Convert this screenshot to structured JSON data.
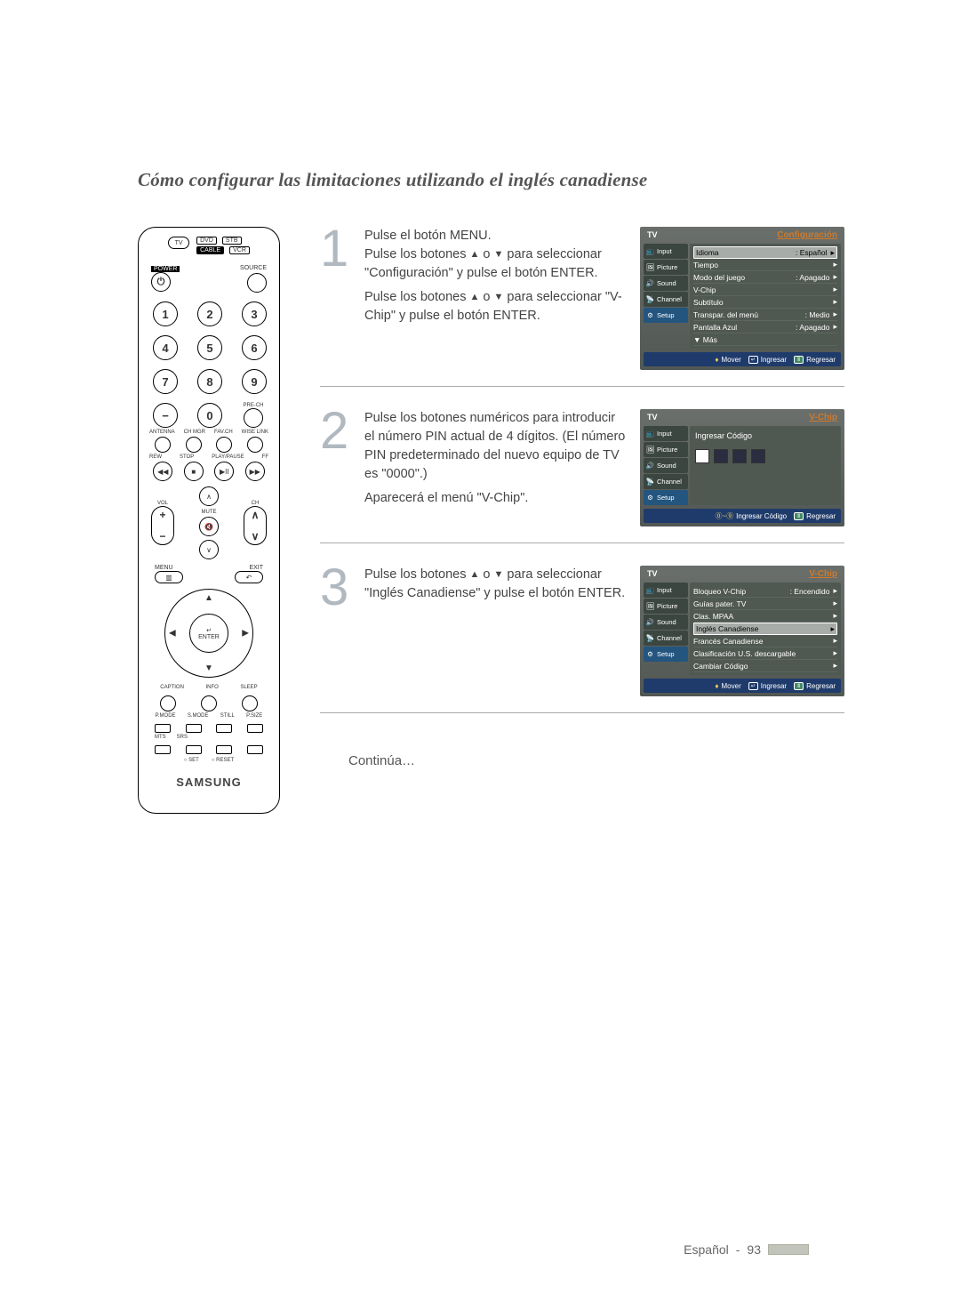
{
  "title": "Cómo configurar las limitaciones utilizando el inglés canadiense",
  "remote": {
    "tv": "TV",
    "dvd": "DVD",
    "stb": "STB",
    "cable": "CABLE",
    "vcr": "VCR",
    "power": "POWER",
    "source": "SOURCE",
    "nums": [
      "1",
      "2",
      "3",
      "4",
      "5",
      "6",
      "7",
      "8",
      "9"
    ],
    "zero": "0",
    "prech": "PRE-CH",
    "row_lbls": [
      "ANTENNA",
      "CH MGR",
      "FAV.CH",
      "WISE LINK"
    ],
    "trans_lbls": [
      "REW",
      "STOP",
      "PLAY/PAUSE",
      "FF"
    ],
    "vol": "VOL",
    "ch": "CH",
    "mute": "MUTE",
    "menu": "MENU",
    "exit": "EXIT",
    "enter": "ENTER",
    "row3": [
      "CAPTION",
      "INFO",
      "SLEEP"
    ],
    "row4": [
      "P.MODE",
      "S.MODE",
      "STILL",
      "P.SIZE"
    ],
    "row5": [
      "MTS",
      "SRS"
    ],
    "setreset": [
      "SET",
      "RESET"
    ],
    "brand": "SAMSUNG"
  },
  "steps": [
    {
      "num": "1",
      "para1_a": "Pulse el botón MENU.",
      "para1_b_pre": "Pulse los botones ",
      "para1_b_post": " para seleccionar \"Configuración\" y pulse el botón ENTER.",
      "para2_pre": "Pulse los botones ",
      "para2_post": " para seleccionar \"V-Chip\" y pulse el botón ENTER."
    },
    {
      "num": "2",
      "para1": "Pulse los botones numéricos para introducir el número PIN actual de 4 dígitos. (El número PIN predeterminado del nuevo equipo de TV es \"0000\".)",
      "para2": "Aparecerá el menú \"V-Chip\"."
    },
    {
      "num": "3",
      "para1_pre": "Pulse los botones ",
      "para1_post": " para seleccionar \"Inglés Canadiense\" y pulse el botón ENTER."
    }
  ],
  "continue": "Continúa…",
  "osd1": {
    "left": "TV",
    "right": "Configuración",
    "tabs": [
      "Input",
      "Picture",
      "Sound",
      "Channel",
      "Setup"
    ],
    "rows": [
      {
        "l": "Idioma",
        "r": ": Español",
        "hl": true
      },
      {
        "l": "Tiempo",
        "r": ""
      },
      {
        "l": "Modo del juego",
        "r": ": Apagado"
      },
      {
        "l": "V-Chip",
        "r": ""
      },
      {
        "l": "Subtítulo",
        "r": ""
      },
      {
        "l": "Transpar. del menú",
        "r": ": Medio"
      },
      {
        "l": "Pantalla Azul",
        "r": ": Apagado"
      },
      {
        "l": "▼ Más",
        "r": "",
        "noarrow": true
      }
    ],
    "footer": [
      "Mover",
      "Ingresar",
      "Regresar"
    ]
  },
  "osd2": {
    "left": "TV",
    "right": "V-Chip",
    "tabs": [
      "Input",
      "Picture",
      "Sound",
      "Channel",
      "Setup"
    ],
    "prompt": "Ingresar Código",
    "footer_l": "Ingresar Código",
    "footer_r": "Regresar"
  },
  "osd3": {
    "left": "TV",
    "right": "V-Chip",
    "tabs": [
      "Input",
      "Picture",
      "Sound",
      "Channel",
      "Setup"
    ],
    "rows": [
      {
        "l": "Bloqueo V-Chip",
        "r": ": Encendido"
      },
      {
        "l": "Guías pater. TV",
        "r": ""
      },
      {
        "l": "Clas. MPAA",
        "r": ""
      },
      {
        "l": "Inglés Canadiense",
        "r": "",
        "hl": true
      },
      {
        "l": "Francés Canadiense",
        "r": ""
      },
      {
        "l": "Clasificación U.S. descargable",
        "r": ""
      },
      {
        "l": "Cambiar Código",
        "r": ""
      }
    ],
    "footer": [
      "Mover",
      "Ingresar",
      "Regresar"
    ]
  },
  "footer": {
    "lang": "Español",
    "page": "93"
  }
}
